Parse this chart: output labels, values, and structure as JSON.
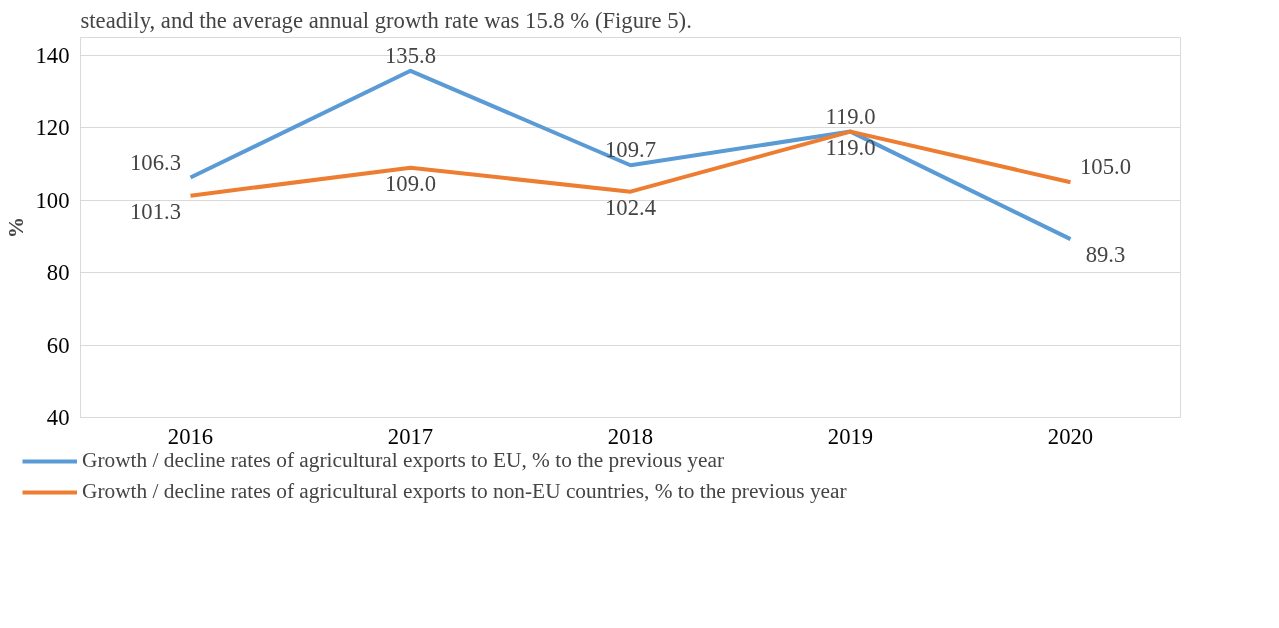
{
  "chart_data": {
    "type": "line",
    "ylabel": "%",
    "categories": [
      "2016",
      "2017",
      "2018",
      "2019",
      "2020"
    ],
    "series": [
      {
        "name": "Growth / decline rates of agricultural exports to EU, % to the previous year",
        "color": "#5b9bd5",
        "values": [
          106.3,
          135.8,
          109.7,
          119.0,
          89.3
        ],
        "value_labels": [
          "106.3",
          "135.8",
          "109.7",
          "119.0",
          "89.3"
        ]
      },
      {
        "name": "Growth / decline rates of agricultural exports to non-EU countries, % to the previous year",
        "color": "#ed7d31",
        "values": [
          101.3,
          109.0,
          102.4,
          119.0,
          105.0
        ],
        "value_labels": [
          "101.3",
          "109.0",
          "102.4",
          "119.0",
          "105.0"
        ]
      }
    ],
    "ylim": [
      40,
      145
    ],
    "yticks": [
      40,
      60,
      80,
      100,
      120,
      140
    ],
    "grid": "y",
    "legend": "bottom",
    "marker": "none",
    "line_style": "solid",
    "annotations": [
      "steadily, and the average annual growth rate was 15.8 % (Figure 5)."
    ]
  }
}
